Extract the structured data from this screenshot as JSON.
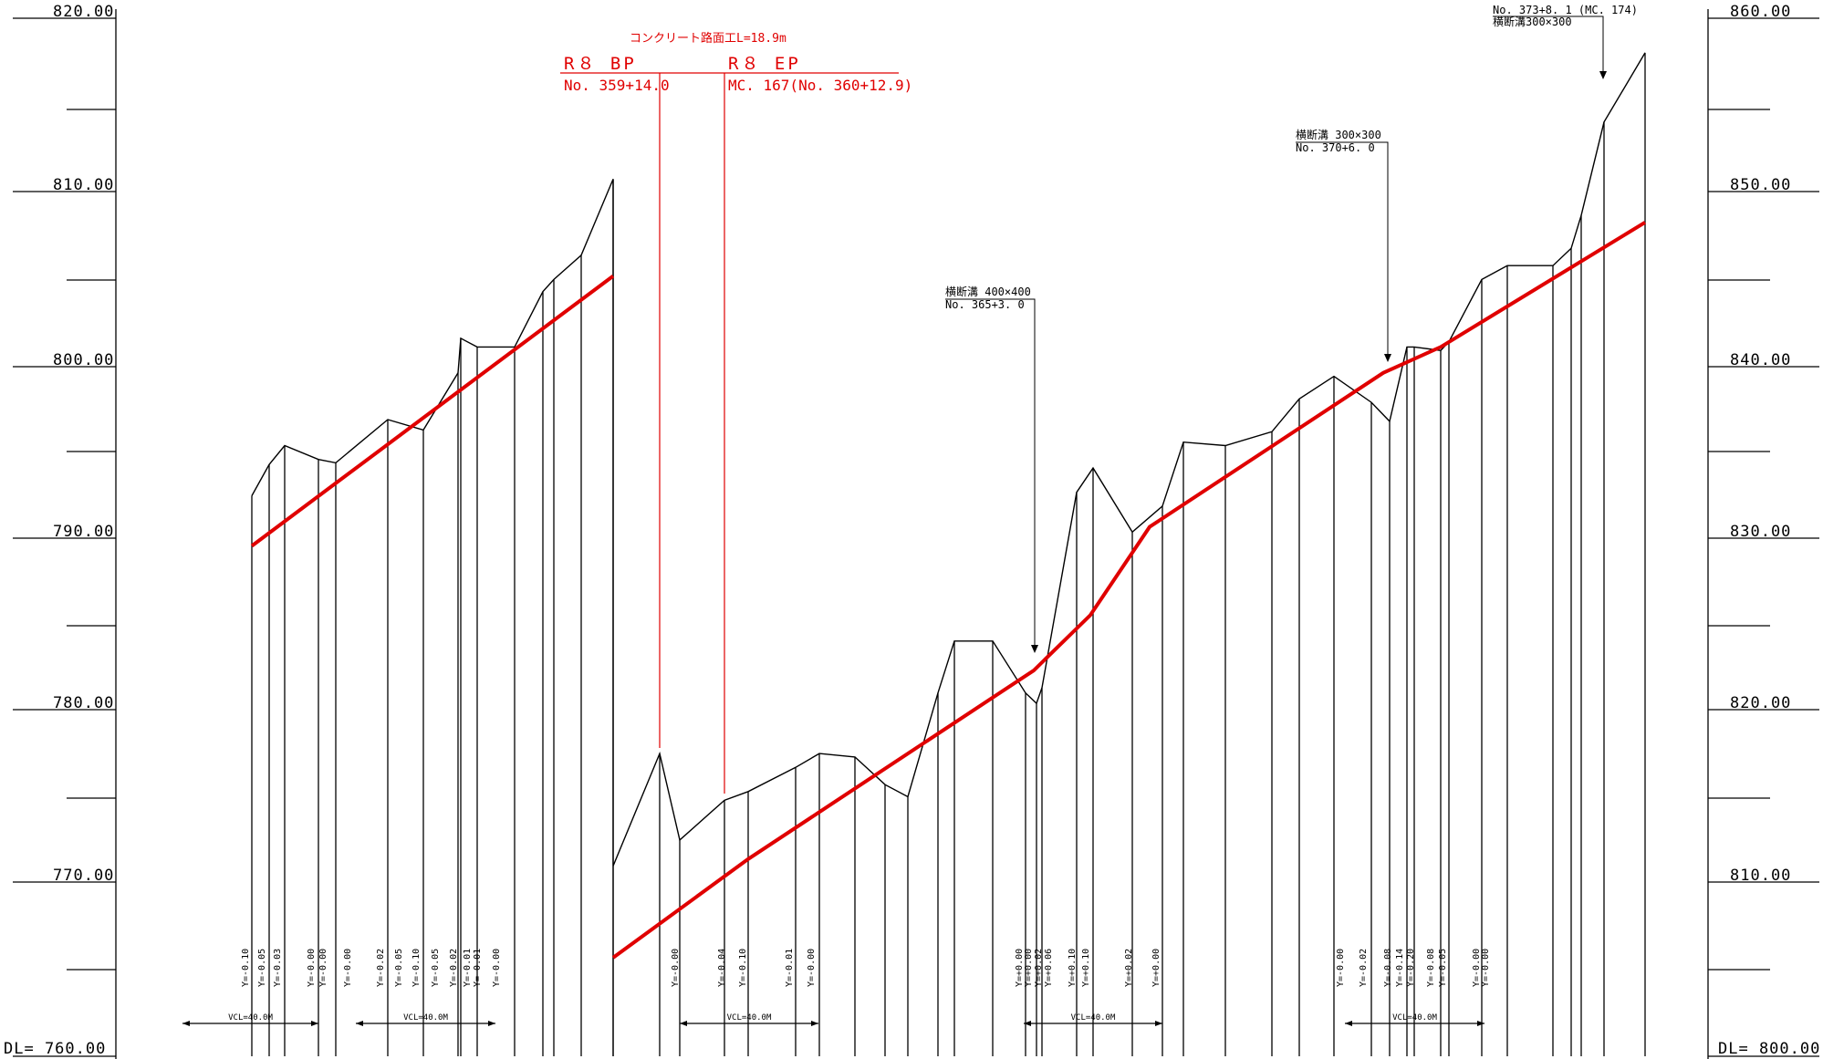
{
  "left_axis": {
    "labels": [
      "820.00",
      "810.00",
      "800.00",
      "790.00",
      "780.00",
      "770.00"
    ],
    "datum": "DL= 760.00",
    "range": [
      760,
      820
    ]
  },
  "right_axis": {
    "labels": [
      "860.00",
      "850.00",
      "840.00",
      "830.00",
      "820.00",
      "810.00"
    ],
    "datum": "DL= 800.00",
    "range": [
      800,
      860
    ]
  },
  "concrete_note": "コンクリート路面工L=18.9m",
  "r8_bp": {
    "label": "R８ BP",
    "station": "No. 359+14.0"
  },
  "r8_ep": {
    "label": "R８ EP",
    "station": "MC. 167(No. 360+12.9)"
  },
  "callouts": [
    {
      "line1": "横断溝 400×400",
      "line2": "No. 365+3. 0"
    },
    {
      "line1": "横断溝 300×300",
      "line2": "No. 370+6. 0"
    },
    {
      "line1": "No. 373+8. 1 (MC. 174)",
      "line2": "横断溝300×300"
    }
  ],
  "y_labels": [
    "Y=-0.10",
    "Y=-0.05",
    "Y=-0.03",
    "Y=-0.00",
    "Y=-0.00",
    "Y=-0.00",
    "Y=-0.02",
    "Y=-0.05",
    "Y=-0.10",
    "Y=-0.05",
    "Y=-0.02",
    "Y=-0.01",
    "Y=-0.01",
    "Y=-0.00",
    "Y=-0.00",
    "Y=-0.04",
    "Y=-0.10",
    "Y=-0.01",
    "Y=-0.00",
    "Y=+0.00",
    "Y=+0.00",
    "Y=+0.02",
    "Y=+0.06",
    "Y=+0.10",
    "Y=+0.10",
    "Y=+0.02",
    "Y=+0.00",
    "Y=-0.00",
    "Y=-0.02",
    "Y=-0.08",
    "Y=-0.14",
    "Y=-0.20",
    "Y=-0.08",
    "Y=-0.05",
    "Y=-0.00",
    "Y=-0.00"
  ],
  "vcl_labels": [
    "VCL=40.0M",
    "VCL=40.0M",
    "VCL=40.0M",
    "VCL=40.0M",
    "VCL=40.0M"
  ],
  "chart_data": {
    "type": "line",
    "title": "",
    "ylabel": "",
    "ylim": [
      760,
      820
    ],
    "series": [
      {
        "values": [
          792.4,
          794.2,
          795.3,
          794.5,
          794.3,
          796.8,
          796.2,
          799.5,
          801.5,
          801.0,
          801.0,
          804.2,
          804.9,
          806.3,
          810.7,
          771.0,
          777.5,
          772.5,
          774.8,
          775.3,
          776.7,
          777.5,
          777.3,
          775.7,
          775.0,
          781.0,
          784.0,
          784.0,
          781.0,
          780.4,
          781.3,
          792.6,
          794.0,
          790.3,
          791.8,
          795.5,
          795.3,
          796.1,
          798.0,
          799.3,
          797.8,
          796.7,
          801.0,
          801.0,
          800.8,
          801.3,
          804.9,
          805.7,
          805.7,
          806.7,
          808.6,
          814.0,
          818.0
        ]
      },
      {
        "values": [
          789.5,
          805.1,
          765.7,
          771.4,
          782.3,
          785.5,
          790.6,
          799.5,
          801.0,
          808.2
        ]
      }
    ]
  }
}
